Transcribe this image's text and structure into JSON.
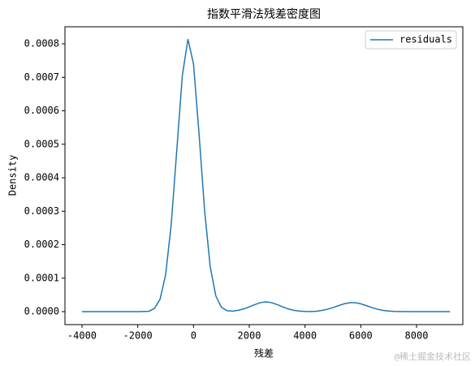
{
  "chart_data": {
    "type": "line",
    "title": "指数平滑法残差密度图",
    "x_label": "残差",
    "y_label": "Density",
    "x": [
      -4000,
      -3000,
      -2000,
      -1600,
      -1400,
      -1200,
      -1000,
      -800,
      -600,
      -400,
      -200,
      0,
      200,
      400,
      600,
      800,
      1000,
      1200,
      1400,
      1600,
      1800,
      2000,
      2200,
      2400,
      2600,
      2800,
      3000,
      3200,
      3400,
      3600,
      3800,
      4000,
      4200,
      4400,
      4600,
      4800,
      5000,
      5200,
      5400,
      5600,
      5800,
      6000,
      6200,
      6400,
      6600,
      6800,
      7000,
      7200,
      7400,
      8000,
      9200
    ],
    "series": [
      {
        "name": "residuals",
        "color": "#1f77b4",
        "values": [
          0,
          0,
          0,
          1e-06,
          9.7e-06,
          3.69e-05,
          0.0001103,
          0.00026,
          0.000482,
          0.000706,
          0.000814,
          0.00074,
          0.00053,
          0.0003,
          0.000134,
          4.68e-05,
          1.3e-05,
          2.8e-06,
          1.5e-06,
          3.9e-06,
          8.1e-06,
          1.41e-05,
          2.11e-05,
          2.68e-05,
          2.9e-05,
          2.68e-05,
          2.11e-05,
          1.41e-05,
          8.1e-06,
          3.9e-06,
          1.6e-06,
          5e-07,
          2e-07,
          8e-07,
          3.6e-06,
          7.1e-06,
          1.2e-05,
          1.79e-05,
          2.33e-05,
          2.66e-05,
          2.66e-05,
          2.33e-05,
          1.79e-05,
          1.2e-05,
          7.1e-06,
          3.6e-06,
          1.7e-06,
          6e-07,
          2e-07,
          0,
          0
        ]
      }
    ],
    "xlim": [
      -4611,
      9660
    ],
    "ylim": [
      -3.88e-05,
      0.000851
    ],
    "xticks": [
      -4000,
      -2000,
      0,
      2000,
      4000,
      6000,
      8000
    ],
    "yticks": [
      {
        "value": 0,
        "label": "0.0000"
      },
      {
        "value": 0.0001,
        "label": "0.0001"
      },
      {
        "value": 0.0002,
        "label": "0.0002"
      },
      {
        "value": 0.0003,
        "label": "0.0003"
      },
      {
        "value": 0.0004,
        "label": "0.0004"
      },
      {
        "value": 0.0005,
        "label": "0.0005"
      },
      {
        "value": 0.0006,
        "label": "0.0006"
      },
      {
        "value": 0.0007,
        "label": "0.0007"
      },
      {
        "value": 0.0008,
        "label": "0.0008"
      }
    ],
    "legend": "upper right",
    "grid": false
  },
  "watermark": "@稀土掘金技术社区"
}
